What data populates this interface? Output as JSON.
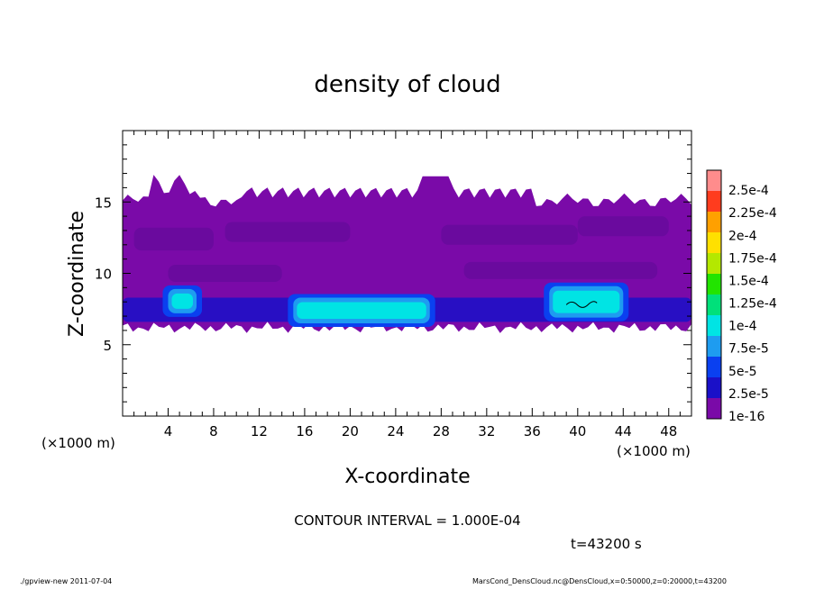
{
  "chart_data": {
    "type": "heatmap",
    "title": "density of cloud",
    "xlabel": "X-coordinate",
    "ylabel": "Z-coordinate",
    "x_unit_label_left": "(×1000 m)",
    "x_unit_label_right": "(×1000 m)",
    "xlim": [
      0,
      50
    ],
    "ylim": [
      0,
      20
    ],
    "xticks": [
      "4",
      "8",
      "12",
      "16",
      "20",
      "24",
      "28",
      "32",
      "36",
      "40",
      "44",
      "48"
    ],
    "yticks": [
      "5",
      "10",
      "15"
    ],
    "contour_interval_text": "CONTOUR INTERVAL = 1.000E-04",
    "time_text": "t=43200 s",
    "colorbar": {
      "labels": [
        "1e-16",
        "2.5e-5",
        "5e-5",
        "7.5e-5",
        "1e-4",
        "1.25e-4",
        "1.5e-4",
        "1.75e-4",
        "2e-4",
        "2.25e-4",
        "2.5e-4"
      ],
      "colors": [
        "#7a0aa8",
        "#1a10c8",
        "#0a40f0",
        "#1e9cf0",
        "#00e4e4",
        "#00e07a",
        "#22e400",
        "#b4e800",
        "#ffe000",
        "#ffa000",
        "#ff3c1e",
        "#ff8c8c"
      ]
    },
    "cloud_layer": {
      "z_bottom": [
        5.8,
        6.6
      ],
      "z_top": [
        15,
        17.1
      ],
      "dominant_value": "1e-16"
    },
    "regions": [
      {
        "x": [
          4,
          6.5
        ],
        "z": [
          7.2,
          8.9
        ],
        "level": "7.5e-5"
      },
      {
        "x": [
          15,
          27
        ],
        "z": [
          6.5,
          8.3
        ],
        "level": "7.5e-5"
      },
      {
        "x": [
          37.5,
          44
        ],
        "z": [
          6.9,
          9.1
        ],
        "level": "7.5e-5"
      }
    ]
  },
  "footer": {
    "left": "./gpview-new  2011-07-04",
    "right": "MarsCond_DensCloud.nc@DensCloud,x=0:50000,z=0:20000,t=43200"
  }
}
